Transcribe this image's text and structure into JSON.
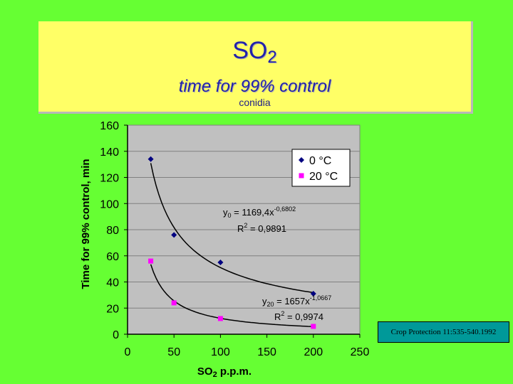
{
  "slide": {
    "title_main": "SO",
    "title_main_sub": "2",
    "title_sub": "time for 99% control",
    "title_sub2": "conidia",
    "citation": "Crop Protection 11:535-540.1992"
  },
  "colors": {
    "background": "#66ff33",
    "title_box": "#ffff66",
    "plot_area": "#c0c0c0",
    "series_0": "#000080",
    "series_20": "#ff00ff",
    "citation_box": "#009999"
  },
  "chart_data": {
    "type": "scatter",
    "xlabel": "SO",
    "xlabel_sub": "2",
    "xlabel_suffix": " p.p.m.",
    "ylabel": "Time for 99% control, min",
    "xlim": [
      0,
      250
    ],
    "ylim": [
      0,
      160
    ],
    "x_ticks": [
      0,
      50,
      100,
      150,
      200,
      250
    ],
    "y_ticks": [
      0,
      20,
      40,
      60,
      80,
      100,
      120,
      140,
      160
    ],
    "grid": "horizontal",
    "legend_position": "top-right",
    "series": [
      {
        "name": "0 °C",
        "marker": "diamond",
        "x": [
          25,
          50,
          100,
          200
        ],
        "y": [
          134,
          76,
          55,
          31
        ],
        "trendline": {
          "type": "power",
          "a": 1169.4,
          "b": -0.6802,
          "x_from": 25,
          "x_to": 200
        },
        "equation": {
          "lead": "y",
          "sub": "0",
          "main": " = 1169,4x",
          "exp": "-0,6802"
        },
        "r2": {
          "lead": "R",
          "sup": "2",
          "rest": " = 0,9891"
        }
      },
      {
        "name": "20 °C",
        "marker": "square",
        "x": [
          25,
          50,
          100,
          200
        ],
        "y": [
          56,
          24,
          12,
          6
        ],
        "trendline": {
          "type": "power",
          "a": 1657,
          "b": -1.0667,
          "x_from": 25,
          "x_to": 200
        },
        "equation": {
          "lead": "y",
          "sub": "20",
          "main": " = 1657x",
          "exp": "-1,0667"
        },
        "r2": {
          "lead": "R",
          "sup": "2",
          "rest": " = 0,9974"
        }
      }
    ]
  }
}
